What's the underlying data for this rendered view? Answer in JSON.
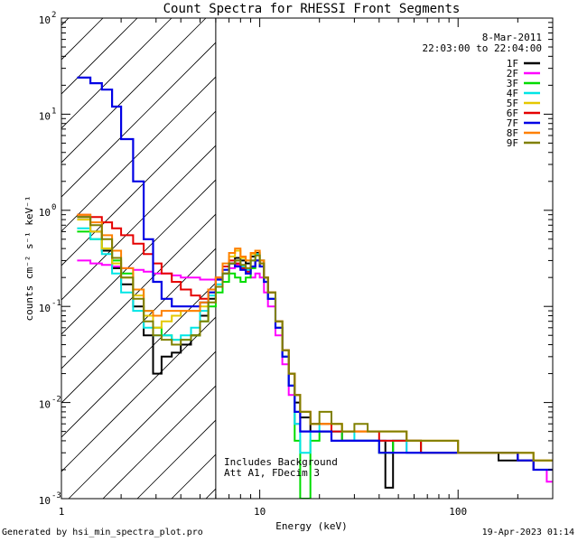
{
  "chart_data": {
    "type": "line",
    "title": "Count Spectra for RHESSI Front Segments",
    "xlabel": "Energy (keV)",
    "ylabel": "counts cm⁻² s⁻¹ keV⁻¹",
    "xscale": "log",
    "yscale": "log",
    "xlim": [
      1,
      300
    ],
    "ylim": [
      0.001,
      100
    ],
    "x_tick_labels": [
      {
        "value": 1,
        "label": "1"
      },
      {
        "value": 10,
        "label": "10"
      },
      {
        "value": 100,
        "label": "100"
      }
    ],
    "y_tick_labels": [
      {
        "value": 0.001,
        "base": "10",
        "exp": "-3"
      },
      {
        "value": 0.01,
        "base": "10",
        "exp": "-2"
      },
      {
        "value": 0.1,
        "base": "10",
        "exp": "-1"
      },
      {
        "value": 1,
        "base": "10",
        "exp": "0"
      },
      {
        "value": 10,
        "base": "10",
        "exp": "1"
      },
      {
        "value": 100,
        "base": "10",
        "exp": "2"
      }
    ],
    "date": "8-Mar-2011",
    "time_range": "22:03:00 to 22:04:00",
    "hatch_region": {
      "xmax": 6
    },
    "annotations": [
      "Includes Background",
      "Att A1, FDecim 3"
    ],
    "series": [
      {
        "name": "1F",
        "color": "#000000",
        "x": [
          1.2,
          1.4,
          1.6,
          1.8,
          2.0,
          2.3,
          2.6,
          2.9,
          3.2,
          3.6,
          4.0,
          4.5,
          5.0,
          5.5,
          6.0,
          6.5,
          7.0,
          7.5,
          8.0,
          8.5,
          9.0,
          9.5,
          10.0,
          10.5,
          11,
          12,
          13,
          14,
          15,
          16,
          18,
          20,
          23,
          26,
          30,
          35,
          40,
          43,
          47,
          55,
          65,
          80,
          100,
          130,
          160,
          200,
          240,
          280
        ],
        "y": [
          0.85,
          0.6,
          0.38,
          0.25,
          0.17,
          0.1,
          0.05,
          0.02,
          0.03,
          0.033,
          0.04,
          0.05,
          0.08,
          0.12,
          0.16,
          0.22,
          0.28,
          0.32,
          0.3,
          0.28,
          0.33,
          0.36,
          0.3,
          0.2,
          0.14,
          0.07,
          0.035,
          0.02,
          0.01,
          0.007,
          0.005,
          0.005,
          0.005,
          0.004,
          0.004,
          0.004,
          0.004,
          0.0013,
          0.004,
          0.004,
          0.003,
          0.003,
          0.003,
          0.003,
          0.0025,
          0.0025,
          0.002,
          0.002
        ]
      },
      {
        "name": "2F",
        "color": "#ff00ff",
        "x": [
          1.2,
          1.4,
          1.6,
          1.8,
          2.0,
          2.3,
          2.6,
          2.9,
          3.2,
          3.6,
          4.0,
          4.5,
          5.0,
          5.5,
          6.0,
          6.5,
          7.0,
          7.5,
          8.0,
          8.5,
          9.0,
          9.5,
          10.0,
          10.5,
          11,
          12,
          13,
          14,
          15,
          16,
          18,
          20,
          23,
          26,
          30,
          35,
          40,
          47,
          55,
          65,
          80,
          100,
          130,
          160,
          200,
          240,
          280
        ],
        "y": [
          0.3,
          0.28,
          0.27,
          0.26,
          0.25,
          0.24,
          0.23,
          0.22,
          0.22,
          0.21,
          0.2,
          0.2,
          0.19,
          0.19,
          0.2,
          0.22,
          0.25,
          0.27,
          0.24,
          0.22,
          0.2,
          0.22,
          0.2,
          0.14,
          0.1,
          0.05,
          0.025,
          0.012,
          0.006,
          0.005,
          0.005,
          0.005,
          0.005,
          0.004,
          0.004,
          0.004,
          0.004,
          0.004,
          0.003,
          0.003,
          0.003,
          0.003,
          0.003,
          0.003,
          0.0025,
          0.002,
          0.0015
        ]
      },
      {
        "name": "3F",
        "color": "#00dd00",
        "x": [
          1.2,
          1.4,
          1.6,
          1.8,
          2.0,
          2.3,
          2.6,
          2.9,
          3.2,
          3.6,
          4.0,
          4.5,
          5.0,
          5.5,
          6.0,
          6.5,
          7.0,
          7.5,
          8.0,
          8.5,
          9.0,
          9.5,
          10.0,
          10.5,
          11,
          12,
          13,
          14,
          15,
          16,
          18,
          20,
          23,
          26,
          30,
          35,
          40,
          47,
          55,
          65,
          80,
          100,
          130,
          160,
          200,
          240,
          280
        ],
        "y": [
          0.6,
          0.5,
          0.4,
          0.3,
          0.22,
          0.15,
          0.09,
          0.06,
          0.05,
          0.045,
          0.045,
          0.05,
          0.07,
          0.1,
          0.14,
          0.18,
          0.22,
          0.2,
          0.18,
          0.2,
          0.25,
          0.3,
          0.26,
          0.18,
          0.12,
          0.06,
          0.03,
          0.015,
          0.004,
          0.001,
          0.004,
          0.005,
          0.005,
          0.004,
          0.004,
          0.004,
          0.003,
          0.004,
          0.004,
          0.003,
          0.003,
          0.003,
          0.003,
          0.003,
          0.0025,
          0.002,
          0.002
        ]
      },
      {
        "name": "4F",
        "color": "#00e5e5",
        "x": [
          1.2,
          1.4,
          1.6,
          1.8,
          2.0,
          2.3,
          2.6,
          2.9,
          3.2,
          3.6,
          4.0,
          4.5,
          5.0,
          5.5,
          6.0,
          6.5,
          7.0,
          7.5,
          8.0,
          8.5,
          9.0,
          9.5,
          10.0,
          10.5,
          11,
          12,
          13,
          14,
          15,
          16,
          18,
          20,
          23,
          26,
          30,
          35,
          40,
          47,
          55,
          65,
          80,
          100,
          130,
          160,
          200,
          240,
          280
        ],
        "y": [
          0.65,
          0.5,
          0.35,
          0.22,
          0.14,
          0.09,
          0.06,
          0.05,
          0.05,
          0.045,
          0.05,
          0.06,
          0.09,
          0.13,
          0.17,
          0.22,
          0.28,
          0.3,
          0.26,
          0.24,
          0.3,
          0.35,
          0.3,
          0.2,
          0.14,
          0.07,
          0.03,
          0.015,
          0.006,
          0.003,
          0.005,
          0.006,
          0.005,
          0.005,
          0.004,
          0.004,
          0.004,
          0.004,
          0.003,
          0.003,
          0.003,
          0.003,
          0.003,
          0.003,
          0.0025,
          0.002,
          0.002
        ]
      },
      {
        "name": "5F",
        "color": "#e5c800",
        "x": [
          1.2,
          1.4,
          1.6,
          1.8,
          2.0,
          2.3,
          2.6,
          2.9,
          3.2,
          3.6,
          4.0,
          4.5,
          5.0,
          5.5,
          6.0,
          6.5,
          7.0,
          7.5,
          8.0,
          8.5,
          9.0,
          9.5,
          10.0,
          10.5,
          11,
          12,
          13,
          14,
          15,
          16,
          18,
          20,
          23,
          26,
          30,
          35,
          40,
          47,
          55,
          65,
          80,
          100,
          130,
          160,
          200,
          240,
          280
        ],
        "y": [
          0.8,
          0.6,
          0.4,
          0.28,
          0.2,
          0.13,
          0.08,
          0.06,
          0.07,
          0.08,
          0.09,
          0.09,
          0.1,
          0.14,
          0.2,
          0.26,
          0.33,
          0.38,
          0.32,
          0.3,
          0.35,
          0.38,
          0.3,
          0.2,
          0.14,
          0.07,
          0.035,
          0.02,
          0.012,
          0.008,
          0.006,
          0.006,
          0.006,
          0.005,
          0.005,
          0.005,
          0.005,
          0.005,
          0.004,
          0.004,
          0.004,
          0.003,
          0.003,
          0.003,
          0.003,
          0.0025,
          0.0025
        ]
      },
      {
        "name": "6F",
        "color": "#e50000",
        "x": [
          1.2,
          1.4,
          1.6,
          1.8,
          2.0,
          2.3,
          2.6,
          2.9,
          3.2,
          3.6,
          4.0,
          4.5,
          5.0,
          5.5,
          6.0,
          6.5,
          7.0,
          7.5,
          8.0,
          8.5,
          9.0,
          9.5,
          10.0,
          10.5,
          11,
          12,
          13,
          14,
          15,
          16,
          18,
          20,
          23,
          26,
          30,
          35,
          40,
          47,
          55,
          65,
          80,
          100,
          130,
          160,
          200,
          240,
          280
        ],
        "y": [
          0.9,
          0.85,
          0.75,
          0.65,
          0.55,
          0.45,
          0.35,
          0.28,
          0.22,
          0.18,
          0.15,
          0.13,
          0.12,
          0.15,
          0.2,
          0.26,
          0.3,
          0.28,
          0.25,
          0.23,
          0.26,
          0.3,
          0.28,
          0.2,
          0.14,
          0.07,
          0.035,
          0.02,
          0.012,
          0.008,
          0.006,
          0.006,
          0.005,
          0.005,
          0.005,
          0.005,
          0.004,
          0.004,
          0.004,
          0.003,
          0.003,
          0.003,
          0.003,
          0.003,
          0.0025,
          0.002,
          0.002
        ]
      },
      {
        "name": "7F",
        "color": "#0000e5",
        "x": [
          1.2,
          1.4,
          1.6,
          1.8,
          2.0,
          2.3,
          2.6,
          2.9,
          3.2,
          3.6,
          4.0,
          4.5,
          5.0,
          5.5,
          6.0,
          6.5,
          7.0,
          7.5,
          8.0,
          8.5,
          9.0,
          9.5,
          10.0,
          10.5,
          11,
          12,
          13,
          14,
          15,
          16,
          18,
          20,
          23,
          26,
          30,
          35,
          40,
          47,
          55,
          65,
          80,
          100,
          130,
          160,
          200,
          240,
          280
        ],
        "y": [
          24,
          21,
          18,
          12,
          5.5,
          2,
          0.5,
          0.18,
          0.12,
          0.1,
          0.1,
          0.1,
          0.11,
          0.14,
          0.19,
          0.24,
          0.28,
          0.26,
          0.24,
          0.22,
          0.26,
          0.3,
          0.26,
          0.18,
          0.12,
          0.06,
          0.03,
          0.015,
          0.008,
          0.005,
          0.005,
          0.005,
          0.004,
          0.004,
          0.004,
          0.004,
          0.003,
          0.003,
          0.003,
          0.003,
          0.003,
          0.003,
          0.003,
          0.003,
          0.0025,
          0.002,
          0.002
        ]
      },
      {
        "name": "8F",
        "color": "#ff8000",
        "x": [
          1.2,
          1.4,
          1.6,
          1.8,
          2.0,
          2.3,
          2.6,
          2.9,
          3.2,
          3.6,
          4.0,
          4.5,
          5.0,
          5.5,
          6.0,
          6.5,
          7.0,
          7.5,
          8.0,
          8.5,
          9.0,
          9.5,
          10.0,
          10.5,
          11,
          12,
          13,
          14,
          15,
          16,
          18,
          20,
          23,
          26,
          30,
          35,
          40,
          47,
          55,
          65,
          80,
          100,
          130,
          160,
          200,
          240,
          280
        ],
        "y": [
          0.9,
          0.75,
          0.55,
          0.38,
          0.25,
          0.15,
          0.09,
          0.08,
          0.09,
          0.09,
          0.09,
          0.09,
          0.11,
          0.15,
          0.2,
          0.28,
          0.36,
          0.4,
          0.33,
          0.3,
          0.36,
          0.38,
          0.3,
          0.2,
          0.14,
          0.07,
          0.035,
          0.02,
          0.012,
          0.008,
          0.006,
          0.006,
          0.006,
          0.005,
          0.005,
          0.005,
          0.005,
          0.005,
          0.004,
          0.004,
          0.004,
          0.003,
          0.003,
          0.003,
          0.003,
          0.0025,
          0.0025
        ]
      },
      {
        "name": "9F",
        "color": "#808000",
        "x": [
          1.2,
          1.4,
          1.6,
          1.8,
          2.0,
          2.3,
          2.6,
          2.9,
          3.2,
          3.6,
          4.0,
          4.5,
          5.0,
          5.5,
          6.0,
          6.5,
          7.0,
          7.5,
          8.0,
          8.5,
          9.0,
          9.5,
          10.0,
          10.5,
          11,
          12,
          13,
          14,
          15,
          16,
          18,
          20,
          23,
          26,
          30,
          35,
          40,
          47,
          55,
          65,
          80,
          100,
          130,
          160,
          200,
          240,
          280
        ],
        "y": [
          0.85,
          0.7,
          0.5,
          0.32,
          0.2,
          0.12,
          0.07,
          0.05,
          0.045,
          0.04,
          0.045,
          0.05,
          0.07,
          0.11,
          0.16,
          0.22,
          0.28,
          0.3,
          0.27,
          0.25,
          0.3,
          0.34,
          0.28,
          0.2,
          0.14,
          0.07,
          0.035,
          0.02,
          0.012,
          0.008,
          0.006,
          0.008,
          0.006,
          0.005,
          0.006,
          0.005,
          0.005,
          0.005,
          0.004,
          0.004,
          0.004,
          0.003,
          0.003,
          0.003,
          0.003,
          0.0025,
          0.0025
        ]
      }
    ]
  },
  "footer": {
    "generated_by": "Generated by hsi_min_spectra_plot.pro",
    "timestamp": "19-Apr-2023 01:14"
  }
}
